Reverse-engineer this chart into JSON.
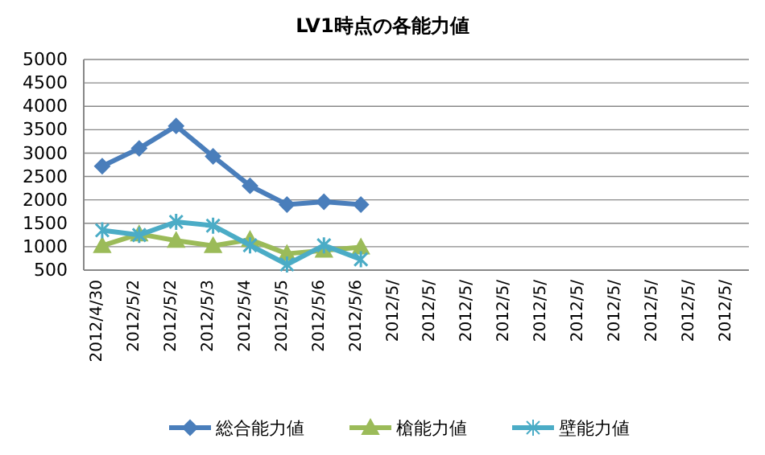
{
  "chart_data": {
    "type": "line",
    "title": "LV1時点の各能力値",
    "categories": [
      "2012/4/30",
      "2012/5/2",
      "2012/5/2",
      "2012/5/3",
      "2012/5/4",
      "2012/5/5",
      "2012/5/6",
      "2012/5/6",
      "2012/5/",
      "2012/5/",
      "2012/5/",
      "2012/5/",
      "2012/5/",
      "2012/5/",
      "2012/5/",
      "2012/5/",
      "2012/5/",
      "2012/5/"
    ],
    "series": [
      {
        "name": "総合能力値",
        "color": "#4a7ebb",
        "marker": "diamond",
        "values": [
          2720,
          3100,
          3580,
          2930,
          2300,
          1900,
          1960,
          1900,
          null,
          null,
          null,
          null,
          null,
          null,
          null,
          null,
          null,
          null
        ]
      },
      {
        "name": "槍能力値",
        "color": "#9bbb59",
        "marker": "triangle",
        "values": [
          1020,
          1270,
          1130,
          1020,
          1150,
          850,
          920,
          990,
          null,
          null,
          null,
          null,
          null,
          null,
          null,
          null,
          null,
          null
        ]
      },
      {
        "name": "壁能力値",
        "color": "#4bacc6",
        "marker": "cross",
        "values": [
          1350,
          1250,
          1530,
          1450,
          1030,
          620,
          1030,
          730,
          null,
          null,
          null,
          null,
          null,
          null,
          null,
          null,
          null,
          null
        ]
      }
    ],
    "ylim": [
      500,
      5000
    ],
    "yticks": [
      500,
      1000,
      1500,
      2000,
      2500,
      3000,
      3500,
      4000,
      4500,
      5000
    ],
    "grid": "y",
    "legend": "bottom",
    "line_style": "solid"
  }
}
